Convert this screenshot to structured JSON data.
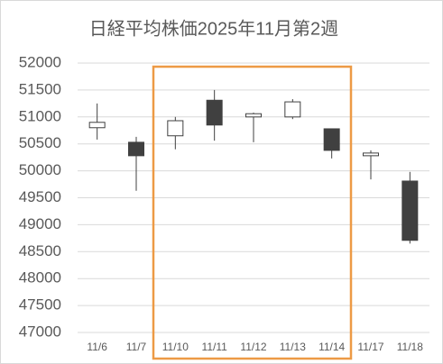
{
  "chart_data": {
    "type": "candlestick",
    "title": "日経平均株価2025年11月第2週",
    "categories": [
      "11/6",
      "11/7",
      "11/10",
      "11/11",
      "11/12",
      "11/13",
      "11/14",
      "11/17",
      "11/18"
    ],
    "open": [
      50800,
      50530,
      50650,
      51310,
      51000,
      51000,
      50780,
      50280,
      49810
    ],
    "high": [
      51250,
      50630,
      51000,
      51500,
      51080,
      51330,
      50780,
      50380,
      49980
    ],
    "low": [
      50580,
      49630,
      50400,
      50560,
      50530,
      50960,
      50230,
      49840,
      48650
    ],
    "close": [
      50900,
      50280,
      50930,
      50850,
      51060,
      51280,
      50380,
      50330,
      48710
    ],
    "up_color": "#ffffff",
    "down_color": "#404040",
    "ylim": [
      47000,
      52000
    ],
    "yticks": [
      47000,
      47500,
      48000,
      48500,
      49000,
      49500,
      50000,
      50500,
      51000,
      51500,
      52000
    ],
    "grid": true
  }
}
